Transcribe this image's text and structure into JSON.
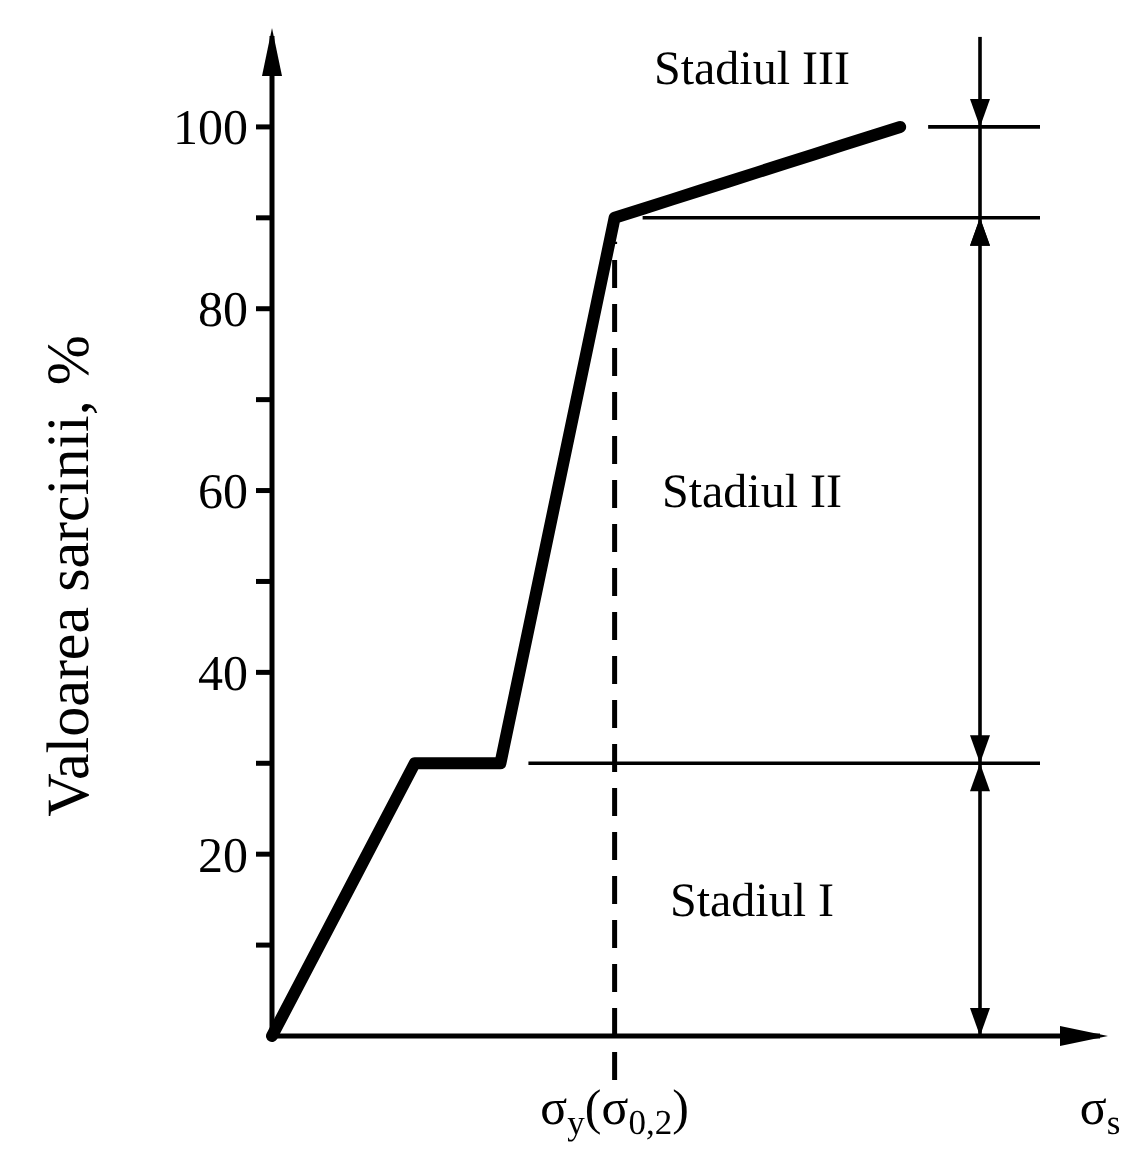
{
  "chart_data": {
    "type": "line",
    "ylabel": "Valoarea sarcinii, %",
    "xlabel": "σ$_{s}$",
    "categories": [
      null,
      null,
      null,
      null,
      null,
      null,
      null,
      null,
      null,
      null,
      null,
      null,
      "σ$_{y}$(σ$_{0,2}$)",
      null,
      null,
      null,
      null,
      null,
      null,
      null,
      null,
      null,
      null,
      null,
      null,
      null,
      null,
      null,
      null,
      null
    ],
    "series": [
      {
        "color": "#000000",
        "values": [
          0,
          6,
          12,
          18,
          24,
          30,
          30,
          30,
          30,
          45,
          60,
          75,
          90,
          91,
          92,
          93,
          94,
          95,
          96,
          97,
          98,
          99,
          100,
          null,
          null,
          null,
          null,
          null,
          null,
          null
        ]
      }
    ],
    "ylim": [
      0,
      110
    ],
    "yticks": [
      {
        "value": 10,
        "label": null
      },
      20,
      {
        "value": 30,
        "label": null
      },
      40,
      {
        "value": 50,
        "label": null
      },
      60,
      {
        "value": 70,
        "label": null
      },
      80,
      {
        "value": 90,
        "label": null
      },
      100
    ],
    "ref_lines": [
      {
        "axis": "x",
        "value": "σ$_{y}$(σ$_{0,2}$)",
        "line_style": "dashed"
      },
      {
        "axis": "y",
        "value": 30
      },
      {
        "axis": "y",
        "value": 90
      },
      {
        "axis": "y",
        "value": 100
      }
    ],
    "annotations": [
      "Stadiul I",
      "Stadiul II",
      "Stadiul III"
    ]
  }
}
